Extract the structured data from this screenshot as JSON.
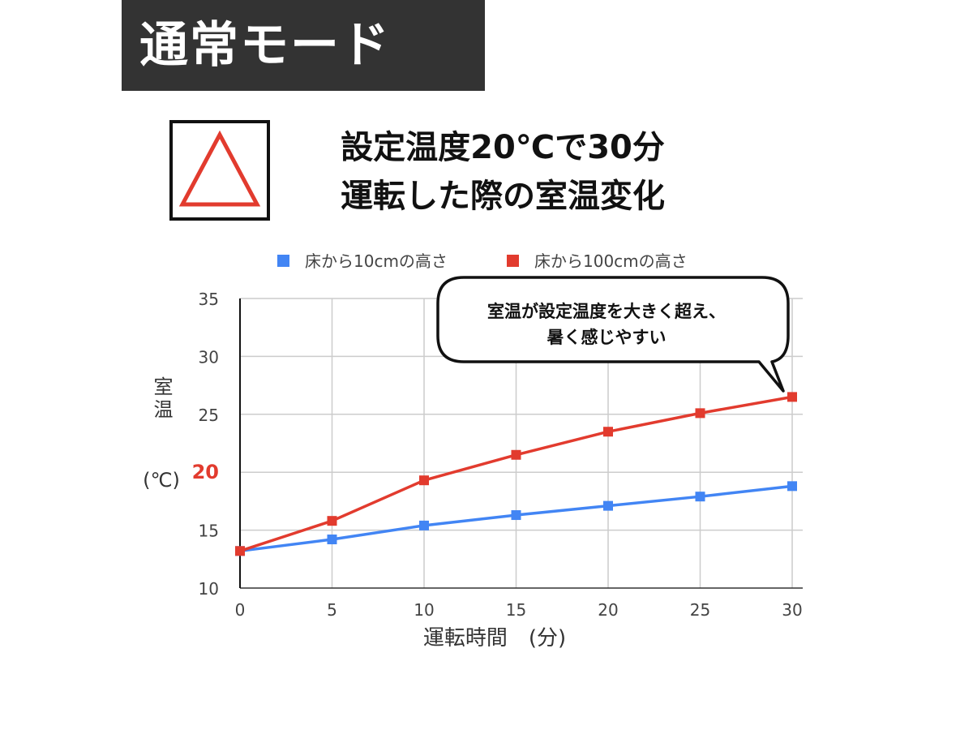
{
  "banner": {
    "title": "通常モード"
  },
  "rating": {
    "symbol": "triangle-icon",
    "color": "#e23b2e"
  },
  "heading": {
    "line1": "設定温度20℃で30分",
    "line2": "運転した際の室温変化"
  },
  "callout": {
    "line1": "室温が設定温度を大きく超え、",
    "line2": "暑く感じやすい"
  },
  "chart_data": {
    "type": "line",
    "x": [
      0,
      5,
      10,
      15,
      20,
      25,
      30
    ],
    "series": [
      {
        "name": "床から10cmの高さ",
        "color": "#4285f4",
        "values": [
          13.2,
          14.2,
          15.4,
          16.3,
          17.1,
          17.9,
          18.8
        ]
      },
      {
        "name": "床から100cmの高さ",
        "color": "#e23b2e",
        "values": [
          13.2,
          15.8,
          19.3,
          21.5,
          23.5,
          25.1,
          26.5
        ]
      }
    ],
    "xlabel": "運転時間　(分)",
    "ylabel_main": "室温",
    "ylabel_unit": "(℃)",
    "xlim": [
      0,
      30
    ],
    "ylim": [
      10,
      35
    ],
    "xticks": [
      0,
      5,
      10,
      15,
      20,
      25,
      30
    ],
    "yticks": [
      10,
      15,
      20,
      25,
      30,
      35
    ],
    "highlight_ytick": {
      "value": 20,
      "color": "#e23b2e"
    },
    "grid": true,
    "legend_position": "top"
  }
}
